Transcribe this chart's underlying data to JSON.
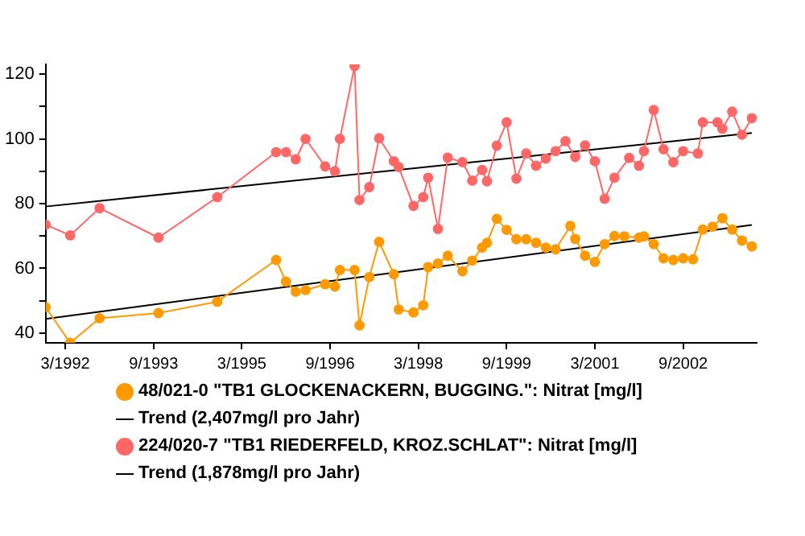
{
  "chart_data": {
    "type": "line",
    "xlim": [
      "1991-11",
      "2003-12"
    ],
    "ylim": [
      37,
      123
    ],
    "xticks": [
      {
        "value": "1992-03",
        "label": "3/1992"
      },
      {
        "value": "1993-09",
        "label": "9/1993"
      },
      {
        "value": "1995-03",
        "label": "3/1995"
      },
      {
        "value": "1996-09",
        "label": "9/1996"
      },
      {
        "value": "1998-03",
        "label": "3/1998"
      },
      {
        "value": "1999-09",
        "label": "9/1999"
      },
      {
        "value": "2001-03",
        "label": "3/2001"
      },
      {
        "value": "2002-09",
        "label": "9/2002"
      }
    ],
    "yticks": [
      40,
      {
        "value": 50,
        "label": null
      },
      60,
      {
        "value": 70,
        "label": null
      },
      80,
      {
        "value": 90,
        "label": null
      },
      100,
      {
        "value": 110,
        "label": null
      },
      120
    ],
    "grid": false,
    "legend": "bottom",
    "series": [
      {
        "name": "48/021-0 \"TB1 GLOCKENACKERN, BUGGING.\": Nitrat [mg/l]",
        "color": "#ff9900",
        "marker": "circle",
        "x": [
          "1991-11",
          "1992-04",
          "1992-10",
          "1993-10",
          "1994-10",
          "1995-10",
          "1995-12",
          "1996-02",
          "1996-04",
          "1996-08",
          "1996-10",
          "1996-11",
          "1997-02",
          "1997-03",
          "1997-05",
          "1997-07",
          "1997-10",
          "1997-11",
          "1998-02",
          "1998-04",
          "1998-05",
          "1998-07",
          "1998-09",
          "1998-12",
          "1999-02",
          "1999-04",
          "1999-05",
          "1999-07",
          "1999-09",
          "1999-11",
          "2000-01",
          "2000-03",
          "2000-05",
          "2000-07",
          "2000-10",
          "2000-11",
          "2001-01",
          "2001-03",
          "2001-05",
          "2001-07",
          "2001-09",
          "2001-12",
          "2002-01",
          "2002-03",
          "2002-05",
          "2002-07",
          "2002-09",
          "2002-11",
          "2003-01",
          "2003-03",
          "2003-05",
          "2003-07",
          "2003-09",
          "2003-11"
        ],
        "values": [
          48.0,
          37.0,
          44.6,
          46.2,
          49.7,
          62.6,
          55.9,
          52.8,
          53.3,
          55.1,
          54.4,
          59.5,
          59.5,
          42.4,
          57.3,
          68.2,
          58.2,
          47.3,
          46.4,
          48.6,
          60.4,
          61.5,
          63.9,
          59.1,
          62.4,
          66.4,
          67.9,
          75.3,
          71.9,
          69.0,
          69.0,
          67.9,
          66.4,
          65.9,
          73.1,
          69.1,
          63.9,
          62.0,
          67.5,
          70.0,
          69.9,
          69.5,
          69.9,
          67.5,
          63.1,
          62.6,
          63.1,
          62.8,
          72.0,
          72.9,
          75.5,
          72.0,
          68.6,
          66.8
        ]
      },
      {
        "name": "Trend (2,407mg/l pro Jahr)",
        "color": "#000000",
        "marker": "none",
        "x": [
          "1991-11",
          "2003-11"
        ],
        "values": [
          44.4,
          73.4
        ]
      },
      {
        "name": "224/020-7 \"TB1 RIEDERFELD, KROZ.SCHLAT\": Nitrat [mg/l]",
        "color": "#ff6666",
        "marker": "circle",
        "x": [
          "1991-11",
          "1992-04",
          "1992-10",
          "1993-10",
          "1994-10",
          "1995-10",
          "1995-12",
          "1996-02",
          "1996-04",
          "1996-08",
          "1996-10",
          "1996-11",
          "1997-02",
          "1997-03",
          "1997-05",
          "1997-07",
          "1997-10",
          "1997-11",
          "1998-02",
          "1998-04",
          "1998-05",
          "1998-07",
          "1998-09",
          "1998-12",
          "1999-02",
          "1999-04",
          "1999-05",
          "1999-07",
          "1999-09",
          "1999-11",
          "2000-01",
          "2000-03",
          "2000-05",
          "2000-07",
          "2000-09",
          "2000-11",
          "2001-01",
          "2001-03",
          "2001-05",
          "2001-07",
          "2001-10",
          "2001-12",
          "2002-01",
          "2002-03",
          "2002-05",
          "2002-07",
          "2002-09",
          "2002-12",
          "2003-01",
          "2003-04",
          "2003-05",
          "2003-07",
          "2003-09",
          "2003-11"
        ],
        "values": [
          73.5,
          70.2,
          78.6,
          69.5,
          82.0,
          95.9,
          95.9,
          93.7,
          100.0,
          91.5,
          90.0,
          100.0,
          122.5,
          81.1,
          85.1,
          100.2,
          93.1,
          91.3,
          79.3,
          82.0,
          88.0,
          72.2,
          94.2,
          92.8,
          87.1,
          90.4,
          86.9,
          97.9,
          105.1,
          87.7,
          95.5,
          91.7,
          93.9,
          96.2,
          99.3,
          94.4,
          98.0,
          93.1,
          81.5,
          88.0,
          94.1,
          91.7,
          96.2,
          108.9,
          96.8,
          92.8,
          96.2,
          95.5,
          105.1,
          105.1,
          103.1,
          108.4,
          101.3,
          106.4
        ]
      },
      {
        "name": "Trend (1,878mg/l pro Jahr)",
        "color": "#000000",
        "marker": "none",
        "x": [
          "1991-11",
          "2003-11"
        ],
        "values": [
          79.1,
          101.8
        ]
      }
    ]
  }
}
